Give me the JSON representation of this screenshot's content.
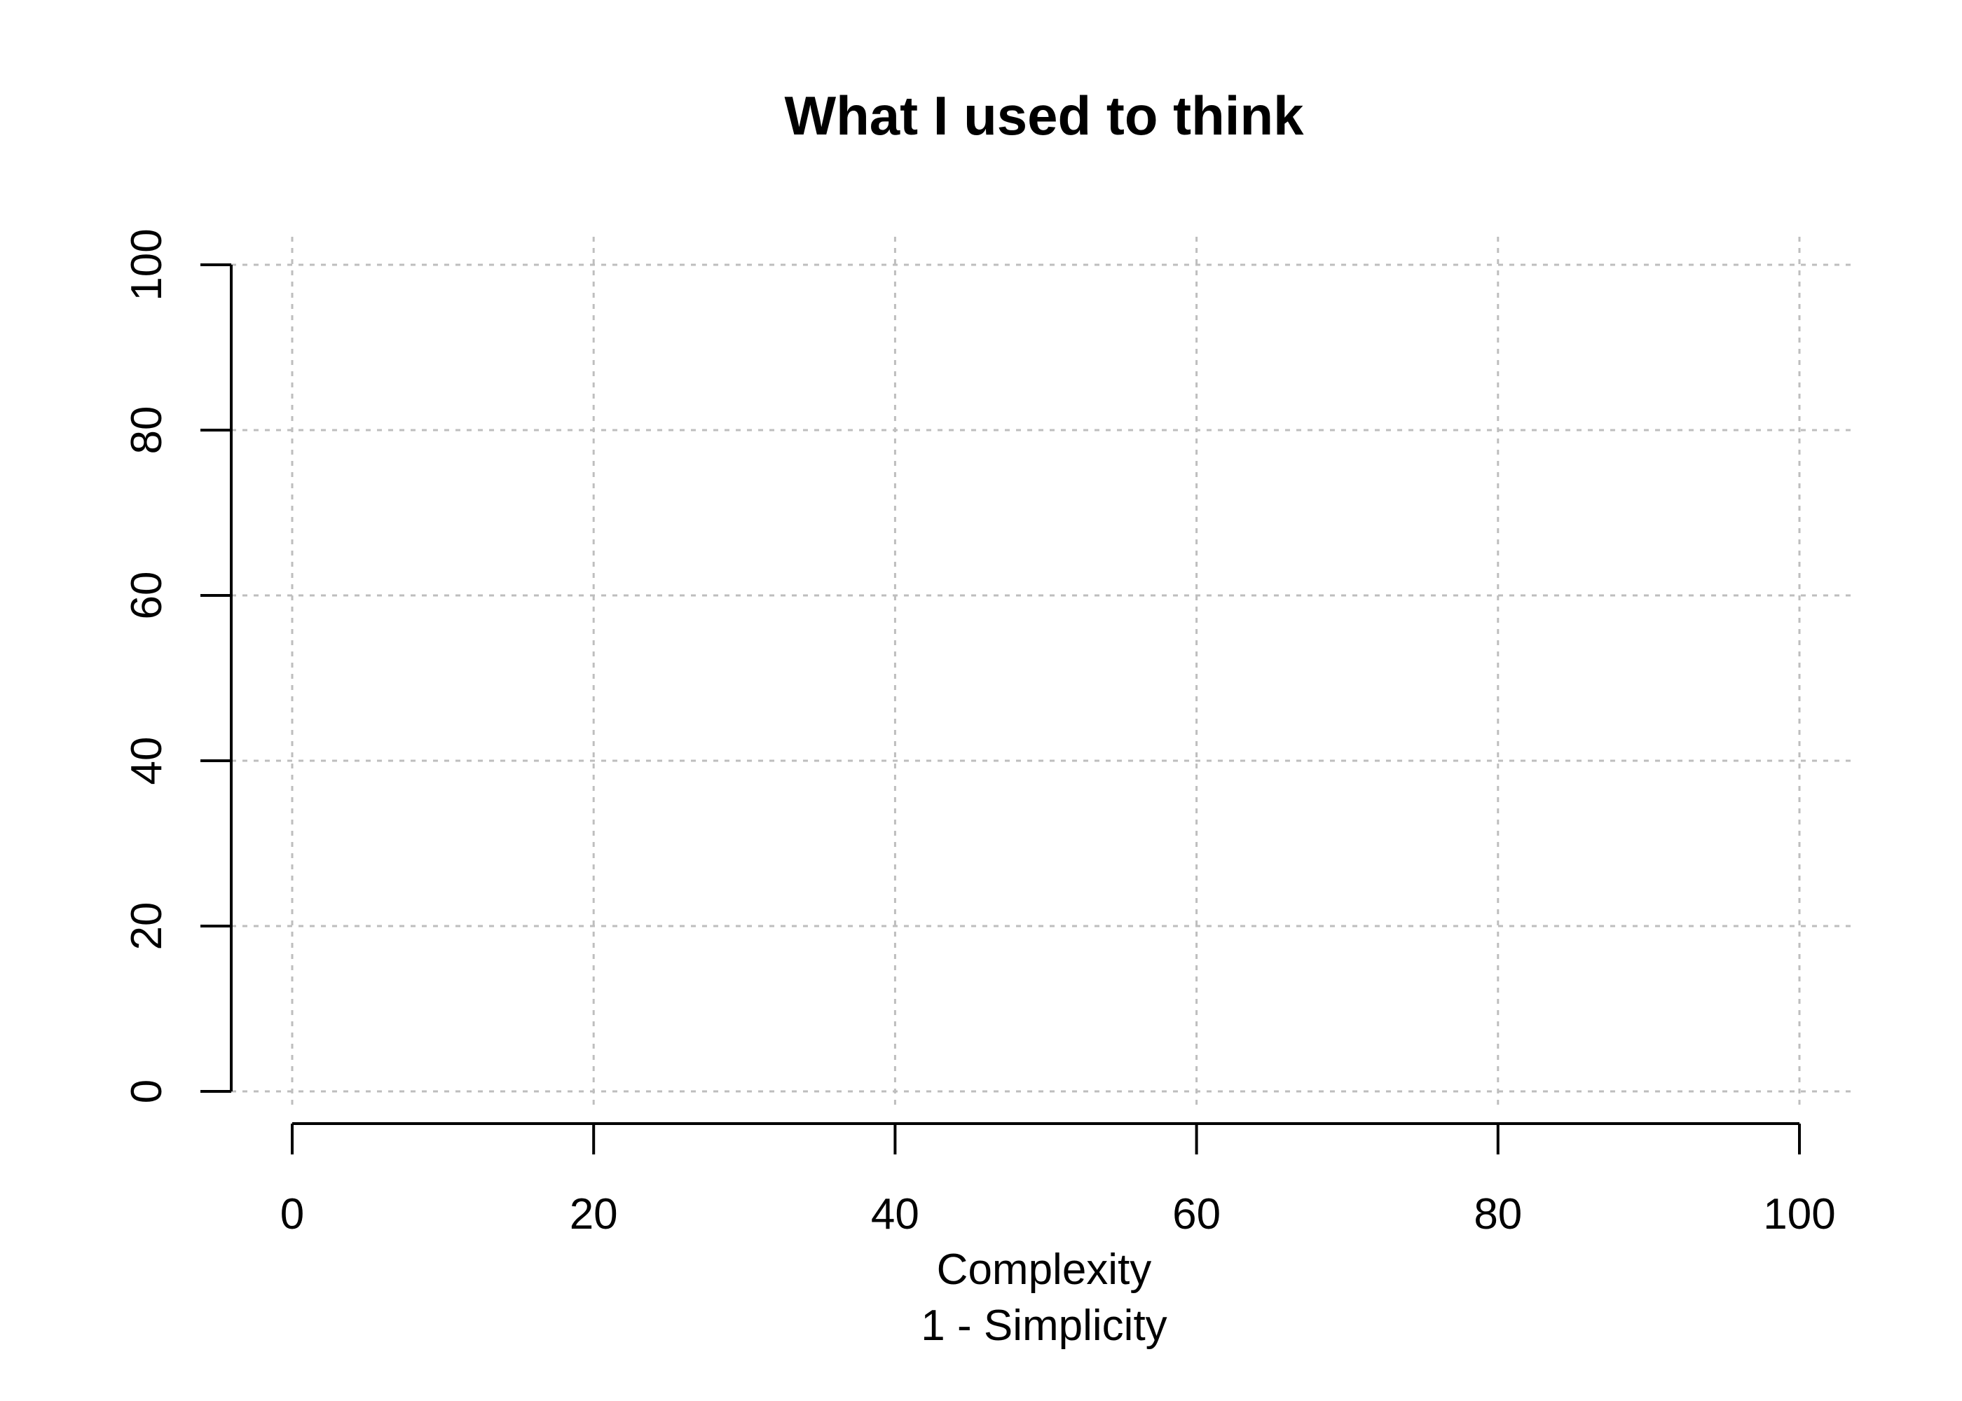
{
  "chart_data": {
    "type": "line",
    "title": "What I used to think",
    "xlabel": "Complexity",
    "xlabel_line2": "1 - Simplicity",
    "ylabel": "",
    "xlim": [
      0,
      100
    ],
    "ylim": [
      0,
      100
    ],
    "x_ticks": [
      0,
      20,
      40,
      60,
      80,
      100
    ],
    "y_ticks": [
      0,
      20,
      40,
      60,
      80,
      100
    ],
    "x_tick_labels": [
      "0",
      "20",
      "40",
      "60",
      "80",
      "100"
    ],
    "y_tick_labels": [
      "0",
      "20",
      "40",
      "60",
      "80",
      "100"
    ],
    "grid": true,
    "grid_style": "dashed",
    "grid_color": "#bebebe",
    "axis_color": "#000000",
    "series": []
  }
}
